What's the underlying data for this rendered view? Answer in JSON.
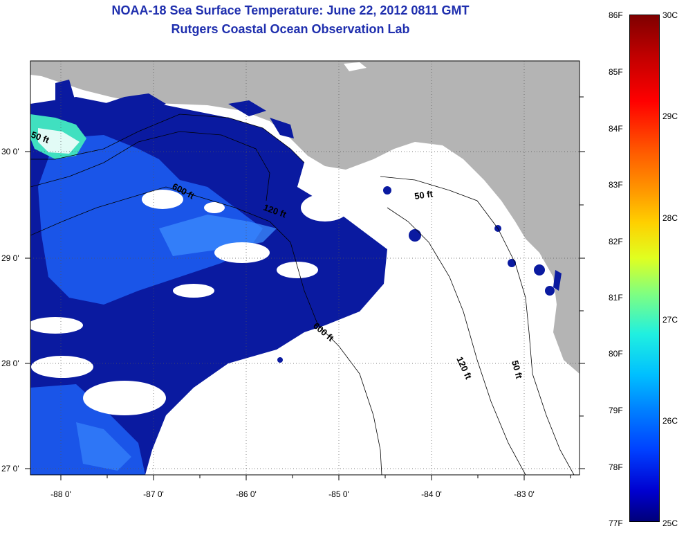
{
  "title": {
    "line1": "NOAA-18 Sea Surface Temperature:  June 22, 2012 0811 GMT",
    "line2": "Rutgers Coastal Ocean Observation Lab"
  },
  "map": {
    "lon_range": [
      -88.33,
      -82.4
    ],
    "lat_range": [
      26.93,
      30.88
    ],
    "lon_ticks": [
      "-88 0'",
      "-87 0'",
      "-86 0'",
      "-85 0'",
      "-84 0'",
      "-83 0'"
    ],
    "lat_ticks": [
      "30 0'",
      "29 0'",
      "28 0'",
      "27 0'"
    ],
    "grid": "dotted",
    "colors": {
      "land": "#b4b4b4",
      "cloud": "#ffffff",
      "water_dark": "#0a1aa0",
      "water_mid": "#1450e0",
      "water_light": "#3c8cff"
    },
    "contour_labels": [
      "50 ft",
      "600 ft",
      "120 ft",
      "600 ft",
      "120 ft",
      "50 ft"
    ]
  },
  "colorbar": {
    "f_labels": [
      "86F",
      "85F",
      "84F",
      "83F",
      "82F",
      "81F",
      "80F",
      "79F",
      "78F",
      "77F"
    ],
    "c_labels": [
      "30C",
      "29C",
      "28C",
      "27C",
      "26C",
      "25C"
    ]
  }
}
